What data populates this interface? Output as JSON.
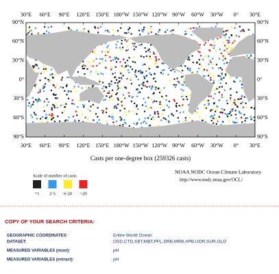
{
  "map": {
    "lon_labels": [
      "30°E",
      "60°E",
      "90°E",
      "120°E",
      "150°E",
      "180°W",
      "150°W",
      "120°W",
      "90°W",
      "60°W",
      "30°W",
      "0°",
      "30°E"
    ],
    "lat_labels": [
      "90°N",
      "60°N",
      "30°N",
      "0°",
      "30°S",
      "60°S",
      "90°S"
    ],
    "caption": "Casts per one-degree box (259326 casts)"
  },
  "legend": {
    "title": "Scale of number of casts",
    "items": [
      {
        "label": "=1",
        "color": "#222222"
      },
      {
        "label": "2-5",
        "color": "#3399ee"
      },
      {
        "label": "6-20",
        "color": "#ffee22"
      },
      {
        "label": ">20",
        "color": "#ee2222"
      }
    ]
  },
  "credit": [
    "NOAA NODC Ocean Climate Laboratory",
    "http://www.nodc.noaa.gov/OCL/"
  ],
  "criteria": {
    "title": "COPY OF YOUR SEARCH CRITERIA:",
    "rows": [
      [
        "GEOGRAPHIC COORDINATES:",
        "Entire World Ocean"
      ],
      [
        "DATASET:",
        "OSD,CTD,XBT,MBT,PFL,DRB,MRB,APB,UOR,SUR,GLD"
      ],
      [
        "MEASURED VARIABLES (must):",
        "pH"
      ],
      [
        "MEASURED VARIABLES (extract):",
        "pH"
      ]
    ]
  }
}
